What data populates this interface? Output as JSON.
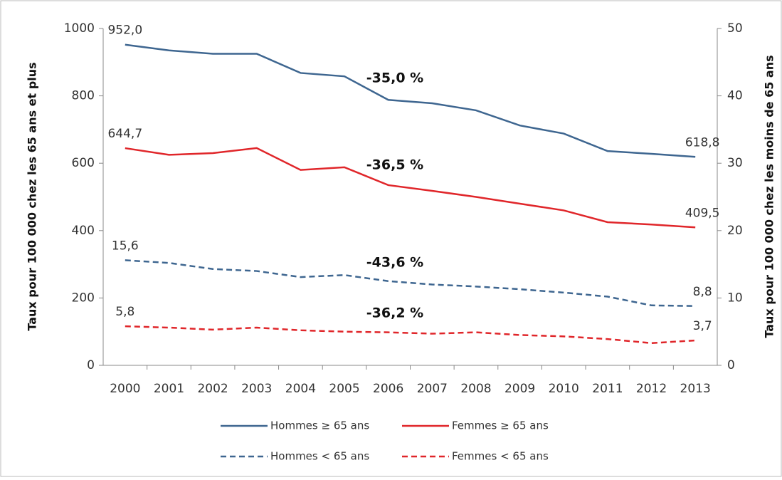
{
  "chart_data": {
    "type": "line",
    "categories": [
      "2000",
      "2001",
      "2002",
      "2003",
      "2004",
      "2005",
      "2006",
      "2007",
      "2008",
      "2009",
      "2010",
      "2011",
      "2012",
      "2013"
    ],
    "y_label": "Taux pour 100 000 chez les 65 ans et plus",
    "y2_label": "Taux pour 100 000 chez les moins de 65 ans",
    "ylim": [
      0,
      1000
    ],
    "yticks": [
      0,
      200,
      400,
      600,
      800,
      1000
    ],
    "y2lim": [
      0,
      50
    ],
    "y2ticks": [
      0,
      10,
      20,
      30,
      40,
      50
    ],
    "legend": "bottom",
    "series": [
      {
        "name": "Hommes ≥ 65 ans",
        "color": "#3e6690",
        "linestyle": "solid",
        "values": [
          952.0,
          935,
          925,
          925,
          868,
          858,
          788,
          778,
          757,
          712,
          688,
          636,
          628,
          618.8
        ],
        "value_labels": [
          "952,0",
          null,
          null,
          null,
          null,
          null,
          null,
          null,
          null,
          null,
          null,
          null,
          null,
          "618,8"
        ],
        "annotation": "-35,0 %"
      },
      {
        "name": "Femmes ≥ 65 ans",
        "color": "#e0262a",
        "linestyle": "solid",
        "values": [
          644.7,
          625,
          630,
          645,
          580,
          588,
          535,
          518,
          500,
          480,
          460,
          425,
          418,
          409.5
        ],
        "value_labels": [
          "644,7",
          null,
          null,
          null,
          null,
          null,
          null,
          null,
          null,
          null,
          null,
          null,
          null,
          "409,5"
        ],
        "annotation": "-36,5 %"
      },
      {
        "name": "Hommes < 65 ans",
        "color": "#3e6690",
        "linestyle": "dashed",
        "axis": "y2",
        "values": [
          15.6,
          15.2,
          14.3,
          14.0,
          13.1,
          13.4,
          12.5,
          12.0,
          11.7,
          11.3,
          10.8,
          10.2,
          8.9,
          8.8
        ],
        "value_labels": [
          "15,6",
          null,
          null,
          null,
          null,
          null,
          null,
          null,
          null,
          null,
          null,
          null,
          null,
          "8,8"
        ],
        "annotation": "-43,6 %"
      },
      {
        "name": "Femmes < 65 ans",
        "color": "#e0262a",
        "linestyle": "dashed",
        "axis": "y2",
        "values": [
          5.8,
          5.6,
          5.3,
          5.6,
          5.2,
          5.0,
          4.9,
          4.7,
          4.9,
          4.5,
          4.3,
          3.9,
          3.3,
          3.7
        ],
        "value_labels": [
          "5,8",
          null,
          null,
          null,
          null,
          null,
          null,
          null,
          null,
          null,
          null,
          null,
          null,
          "3,7"
        ],
        "annotation": "-36,2 %"
      }
    ]
  }
}
